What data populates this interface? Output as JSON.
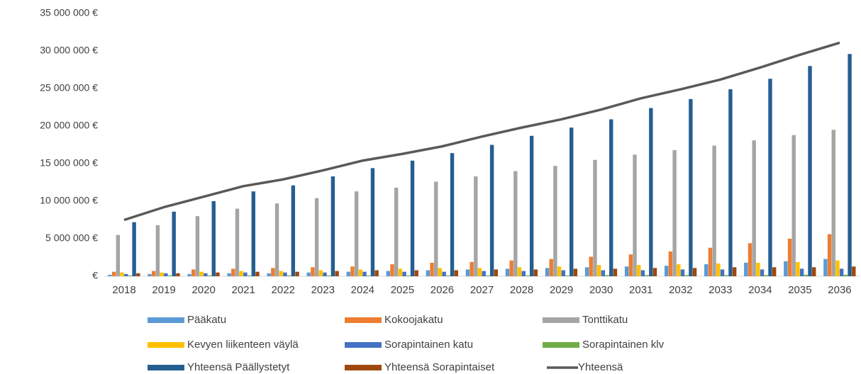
{
  "chart_data": {
    "type": "bar",
    "categories": [
      "2018",
      "2019",
      "2020",
      "2021",
      "2022",
      "2023",
      "2024",
      "2025",
      "2026",
      "2027",
      "2028",
      "2029",
      "2030",
      "2031",
      "2032",
      "2033",
      "2034",
      "2035",
      "2036"
    ],
    "ylim": [
      0,
      35000000
    ],
    "yticks": [
      {
        "value": 0,
        "label": "€"
      },
      {
        "value": 5000000,
        "label": "5 000 000 €"
      },
      {
        "value": 10000000,
        "label": "10 000 000 €"
      },
      {
        "value": 15000000,
        "label": "15 000 000 €"
      },
      {
        "value": 20000000,
        "label": "20 000 000 €"
      },
      {
        "value": 25000000,
        "label": "25 000 000 €"
      },
      {
        "value": 30000000,
        "label": "30 000 000 €"
      },
      {
        "value": 35000000,
        "label": "35 000 000 €"
      }
    ],
    "series": [
      {
        "name": "Pääkatu",
        "color": "#5b9bd5",
        "values": [
          200000,
          300000,
          300000,
          400000,
          400000,
          500000,
          600000,
          700000,
          800000,
          900000,
          1000000,
          1100000,
          1200000,
          1300000,
          1400000,
          1600000,
          1800000,
          2000000,
          2300000
        ]
      },
      {
        "name": "Kokoojakatu",
        "color": "#ed7d31",
        "values": [
          600000,
          700000,
          900000,
          1000000,
          1100000,
          1200000,
          1300000,
          1600000,
          1800000,
          1900000,
          2100000,
          2300000,
          2600000,
          2900000,
          3300000,
          3800000,
          4400000,
          5000000,
          5600000
        ]
      },
      {
        "name": "Tonttikatu",
        "color": "#a5a5a5",
        "values": [
          5500000,
          6800000,
          8000000,
          9000000,
          9700000,
          10400000,
          11300000,
          11800000,
          12600000,
          13300000,
          14000000,
          14700000,
          15500000,
          16200000,
          16800000,
          17400000,
          18100000,
          18800000,
          19500000
        ]
      },
      {
        "name": "Kevyen liikenteen väylä",
        "color": "#ffc000",
        "values": [
          500000,
          500000,
          600000,
          700000,
          700000,
          800000,
          900000,
          1000000,
          1100000,
          1100000,
          1200000,
          1300000,
          1500000,
          1500000,
          1600000,
          1700000,
          1800000,
          1900000,
          2100000
        ]
      },
      {
        "name": "Sorapintainen katu",
        "color": "#4472c4",
        "values": [
          300000,
          400000,
          400000,
          500000,
          500000,
          500000,
          600000,
          600000,
          600000,
          700000,
          700000,
          800000,
          800000,
          800000,
          900000,
          900000,
          900000,
          1000000,
          1000000
        ]
      },
      {
        "name": "Sorapintainen klv",
        "color": "#70ad47",
        "values": [
          100000,
          100000,
          100000,
          100000,
          100000,
          100000,
          100000,
          100000,
          100000,
          100000,
          100000,
          100000,
          150000,
          150000,
          150000,
          150000,
          150000,
          200000,
          200000
        ]
      },
      {
        "name": "Yhteensä Päällystetyt",
        "color": "#255e91",
        "values": [
          7200000,
          8600000,
          10000000,
          11300000,
          12100000,
          13300000,
          14400000,
          15400000,
          16400000,
          17500000,
          18700000,
          19800000,
          20900000,
          22400000,
          23600000,
          24900000,
          26300000,
          28000000,
          29600000
        ]
      },
      {
        "name": "Yhteensä Sorapintaiset",
        "color": "#9e480e",
        "values": [
          400000,
          400000,
          500000,
          600000,
          600000,
          700000,
          800000,
          800000,
          800000,
          900000,
          900000,
          1000000,
          1000000,
          1100000,
          1100000,
          1200000,
          1200000,
          1200000,
          1300000
        ]
      },
      {
        "name": "Yhteensä",
        "color": "#595959",
        "type": "line",
        "values": [
          7500000,
          9200000,
          10600000,
          12000000,
          12900000,
          14100000,
          15400000,
          16300000,
          17300000,
          18600000,
          19800000,
          20900000,
          22200000,
          23700000,
          24900000,
          26200000,
          27800000,
          29500000,
          31100000
        ]
      }
    ]
  }
}
